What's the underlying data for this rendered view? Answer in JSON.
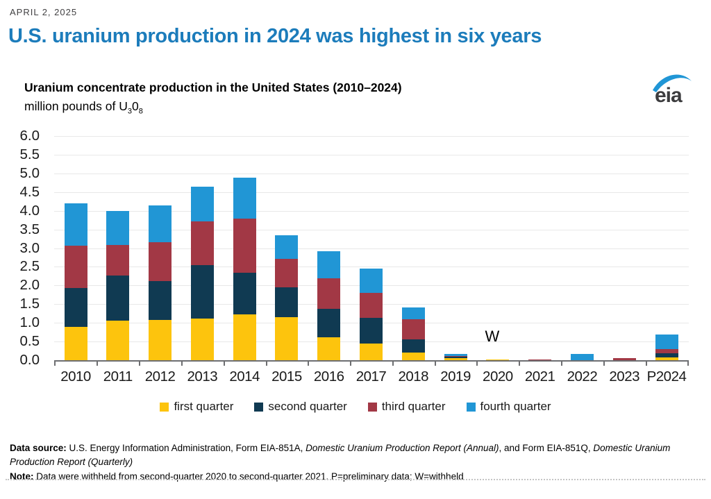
{
  "header": {
    "date": "APRIL 2, 2025",
    "title": "U.S. uranium production in 2024 was highest in six years",
    "accent_color": "#1c7cbb"
  },
  "chart": {
    "title": "Uranium concentrate production in the United States (2010–2024)",
    "unit_prefix": "million pounds of U",
    "unit_sub1": "3",
    "unit_mid": "0",
    "unit_sub2": "8",
    "logo_text": "eia",
    "logo_blue": "#2096d6"
  },
  "chart_data": {
    "type": "bar",
    "stacked": true,
    "title": "Uranium concentrate production in the United States (2010–2024)",
    "ylabel": "million pounds of U3O8",
    "ylim": [
      0,
      6.0
    ],
    "ytick_step": 0.5,
    "grid": true,
    "legend_position": "bottom",
    "categories": [
      "2010",
      "2011",
      "2012",
      "2013",
      "2014",
      "2015",
      "2016",
      "2017",
      "2018",
      "2019",
      "2020",
      "2021",
      "2022",
      "2023",
      "P2024"
    ],
    "series": [
      {
        "name": "first quarter",
        "color": "#fdc40d",
        "values": [
          0.9,
          1.05,
          1.07,
          1.12,
          1.22,
          1.15,
          0.62,
          0.44,
          0.21,
          0.05,
          0.01,
          0,
          0,
          0,
          0.08
        ]
      },
      {
        "name": "second quarter",
        "color": "#103a52",
        "values": [
          1.03,
          1.22,
          1.05,
          1.42,
          1.12,
          0.8,
          0.76,
          0.7,
          0.34,
          0.04,
          0,
          0.01,
          0,
          0,
          0.1
        ]
      },
      {
        "name": "third quarter",
        "color": "#a23845",
        "values": [
          1.13,
          0.82,
          1.04,
          1.17,
          1.45,
          0.76,
          0.82,
          0.66,
          0.55,
          0.03,
          0,
          0.01,
          0,
          0.05,
          0.12
        ]
      },
      {
        "name": "fourth quarter",
        "color": "#2196d5",
        "values": [
          1.14,
          0.9,
          0.98,
          0.93,
          1.1,
          0.63,
          0.72,
          0.65,
          0.32,
          0.04,
          0,
          0,
          0.17,
          0,
          0.38
        ]
      }
    ],
    "annotations": [
      {
        "text": "W",
        "category": "2020",
        "meaning": "withheld"
      }
    ]
  },
  "footer": {
    "source_segments": [
      {
        "text": "Data source: ",
        "bold": true
      },
      {
        "text": "U.S. Energy Information Administration, Form EIA-851A, "
      },
      {
        "text": "Domestic Uranium Production Report (Annual)",
        "italic": true
      },
      {
        "text": ", and Form EIA-851Q, "
      },
      {
        "text": "Domestic Uranium Production Report (Quarterly)",
        "italic": true
      }
    ],
    "note_segments": [
      {
        "text": "Note: ",
        "bold": true
      },
      {
        "text": "Data were withheld from second-quarter 2020 to second-quarter 2021. P=preliminary data; W=withheld"
      }
    ]
  }
}
